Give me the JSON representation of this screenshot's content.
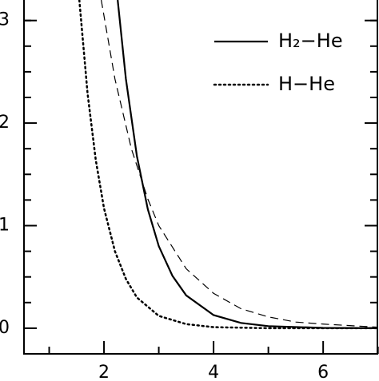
{
  "chart_data": {
    "type": "line",
    "xlim": [
      0.54,
      6.99
    ],
    "xticks": [
      2,
      4,
      6
    ],
    "xminor": [
      1,
      3,
      5,
      7
    ],
    "ylim": [
      -0.25,
      3.2
    ],
    "yticks": [
      0,
      1,
      2,
      3
    ],
    "yminor": [
      0.25,
      0.5,
      0.75,
      1.25,
      1.5,
      1.75,
      2.25,
      2.5,
      2.75,
      3.0
    ],
    "legend": "upper right",
    "series": [
      {
        "name": "H₂−He",
        "color": "#000000",
        "style": "solid",
        "x": [
          2.25,
          2.4,
          2.6,
          2.8,
          3.0,
          3.25,
          3.5,
          4.0,
          4.5,
          5.0,
          6.0,
          7.0
        ],
        "values": [
          3.2,
          2.43,
          1.68,
          1.16,
          0.8,
          0.51,
          0.32,
          0.128,
          0.051,
          0.02,
          0.003,
          0
        ]
      },
      {
        "name": "H−He",
        "color": "#000000",
        "style": "dotted",
        "x": [
          1.55,
          1.7,
          1.85,
          2.0,
          2.2,
          2.4,
          2.6,
          3.0,
          3.5,
          4.0,
          5.0,
          7.0
        ],
        "values": [
          3.2,
          2.29,
          1.64,
          1.17,
          0.75,
          0.48,
          0.3,
          0.12,
          0.04,
          0.01,
          0,
          0
        ]
      },
      {
        "color": "#000000",
        "style": "dashed",
        "x": [
          1.95,
          2.2,
          2.5,
          2.8,
          3.0,
          3.5,
          4.0,
          4.5,
          5.0,
          5.5,
          6.0,
          7.0
        ],
        "values": [
          3.2,
          2.43,
          1.75,
          1.26,
          1.0,
          0.58,
          0.34,
          0.19,
          0.11,
          0.06,
          0.04,
          0.01
        ]
      }
    ]
  }
}
